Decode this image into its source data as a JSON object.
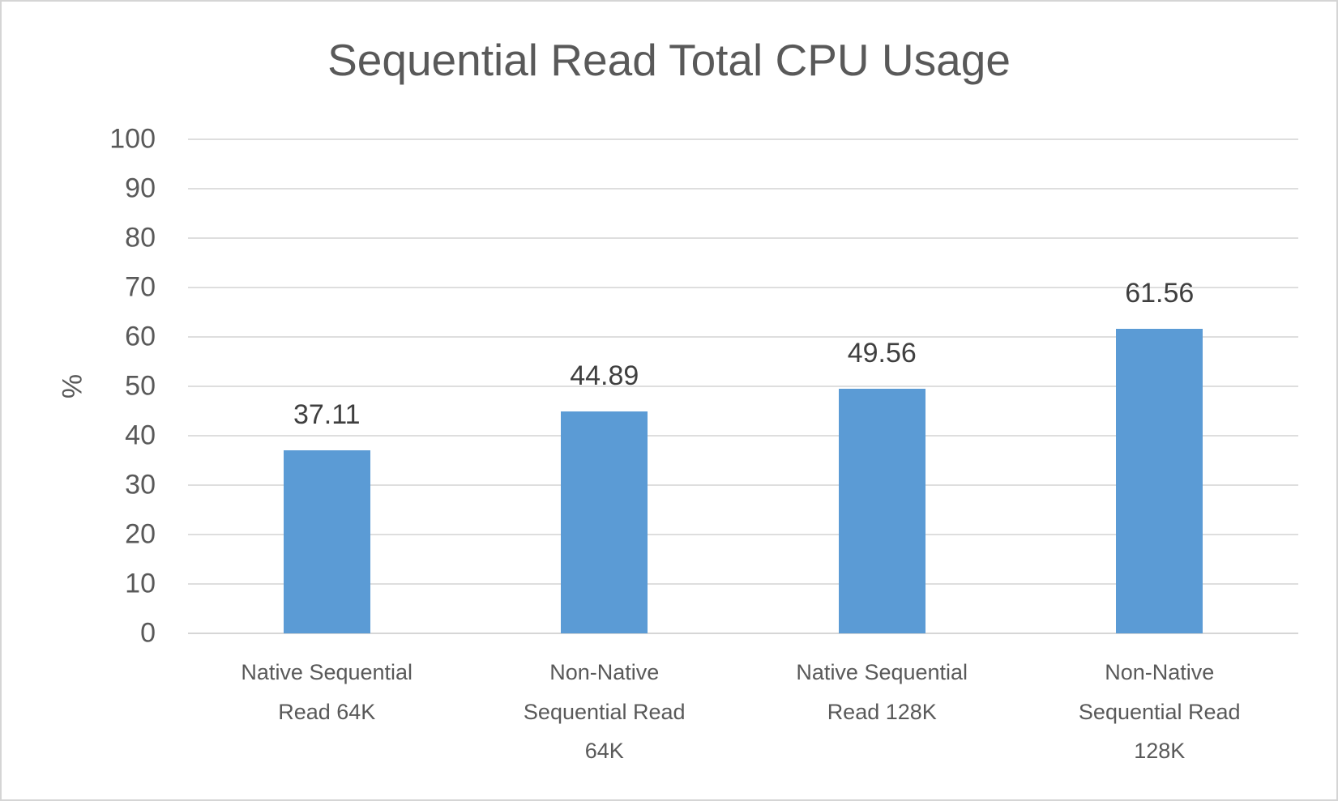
{
  "chart_data": {
    "type": "bar",
    "title": "Sequential Read Total CPU Usage",
    "xlabel": "",
    "ylabel": "%",
    "categories": [
      "Native Sequential Read 64K",
      "Non-Native Sequential Read 64K",
      "Native Sequential Read 128K",
      "Non-Native Sequential Read 128K"
    ],
    "values": [
      37.11,
      44.89,
      49.56,
      61.56
    ],
    "data_labels": [
      "37.11",
      "44.89",
      "49.56",
      "61.56"
    ],
    "ylim": [
      0,
      100
    ],
    "yticks": [
      0,
      10,
      20,
      30,
      40,
      50,
      60,
      70,
      80,
      90,
      100
    ],
    "grid": true,
    "legend": "none",
    "colors": {
      "bar": "#5B9BD5",
      "title_text": "#595959",
      "axis_text": "#595959",
      "data_label_text": "#3F3F3F",
      "gridline": "#DEDEDE",
      "axis_line": "#D6D6D6",
      "frame_border": "#D5D5D5",
      "background": "#FFFFFF"
    }
  }
}
